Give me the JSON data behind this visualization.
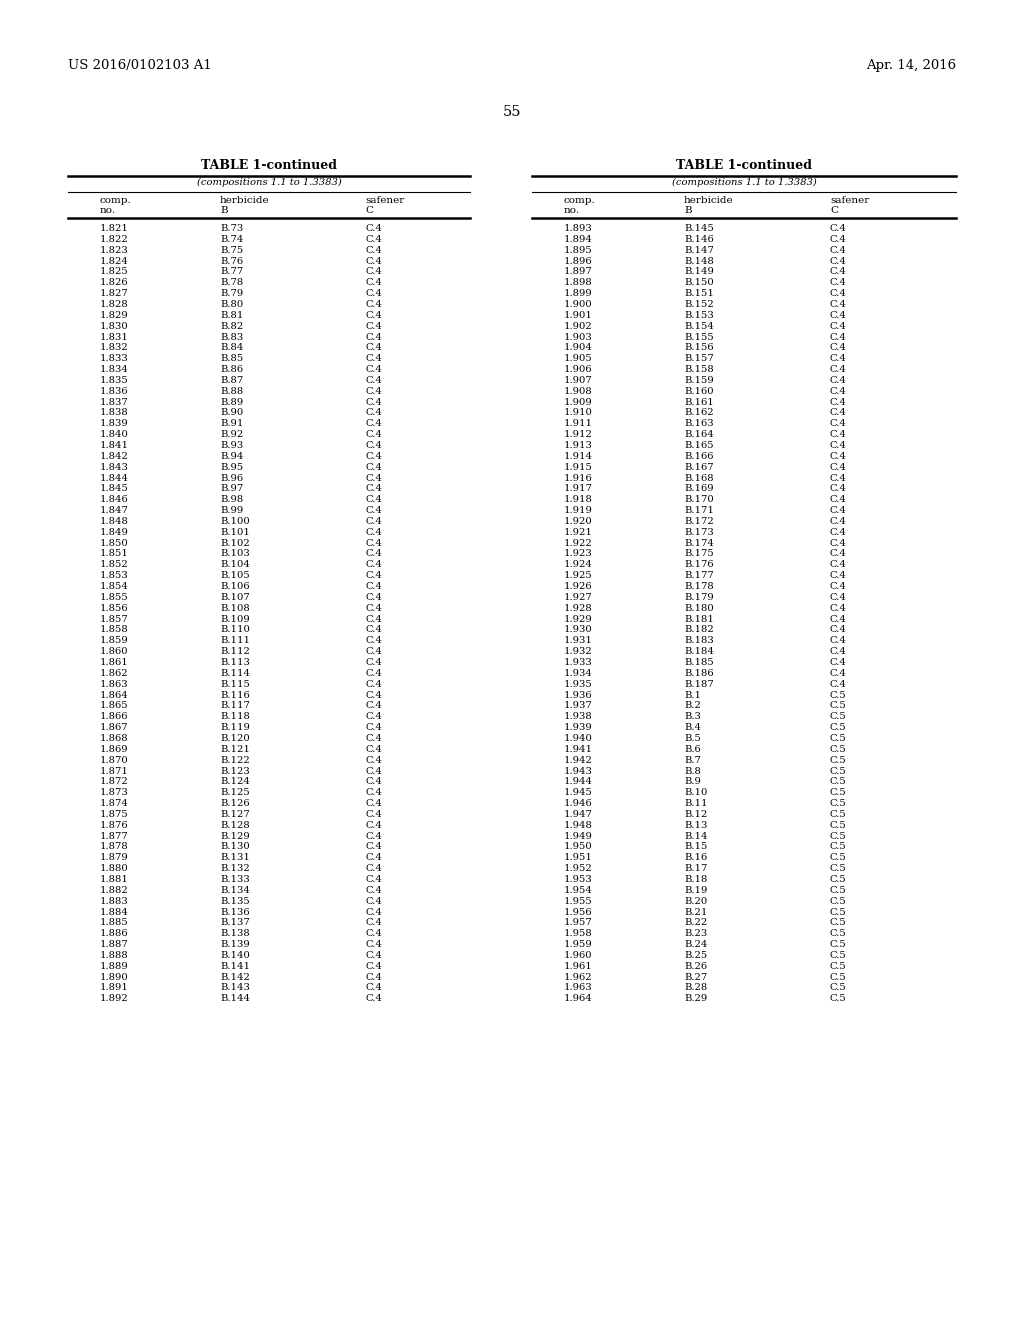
{
  "header_left": "US 2016/0102103 A1",
  "header_right": "Apr. 14, 2016",
  "page_number": "55",
  "table_title": "TABLE 1-continued",
  "table_subtitle": "(compositions 1.1 to 1.3383)",
  "col_labels_line1": [
    "comp.",
    "herbicide",
    "safener"
  ],
  "col_labels_line2": [
    "no.",
    "B",
    "C"
  ],
  "left_table": {
    "comp_no": [
      "1.821",
      "1.822",
      "1.823",
      "1.824",
      "1.825",
      "1.826",
      "1.827",
      "1.828",
      "1.829",
      "1.830",
      "1.831",
      "1.832",
      "1.833",
      "1.834",
      "1.835",
      "1.836",
      "1.837",
      "1.838",
      "1.839",
      "1.840",
      "1.841",
      "1.842",
      "1.843",
      "1.844",
      "1.845",
      "1.846",
      "1.847",
      "1.848",
      "1.849",
      "1.850",
      "1.851",
      "1.852",
      "1.853",
      "1.854",
      "1.855",
      "1.856",
      "1.857",
      "1.858",
      "1.859",
      "1.860",
      "1.861",
      "1.862",
      "1.863",
      "1.864",
      "1.865",
      "1.866",
      "1.867",
      "1.868",
      "1.869",
      "1.870",
      "1.871",
      "1.872",
      "1.873",
      "1.874",
      "1.875",
      "1.876",
      "1.877",
      "1.878",
      "1.879",
      "1.880",
      "1.881",
      "1.882",
      "1.883",
      "1.884",
      "1.885",
      "1.886",
      "1.887",
      "1.888",
      "1.889",
      "1.890",
      "1.891",
      "1.892"
    ],
    "herbicide": [
      "B.73",
      "B.74",
      "B.75",
      "B.76",
      "B.77",
      "B.78",
      "B.79",
      "B.80",
      "B.81",
      "B.82",
      "B.83",
      "B.84",
      "B.85",
      "B.86",
      "B.87",
      "B.88",
      "B.89",
      "B.90",
      "B.91",
      "B.92",
      "B.93",
      "B.94",
      "B.95",
      "B.96",
      "B.97",
      "B.98",
      "B.99",
      "B.100",
      "B.101",
      "B.102",
      "B.103",
      "B.104",
      "B.105",
      "B.106",
      "B.107",
      "B.108",
      "B.109",
      "B.110",
      "B.111",
      "B.112",
      "B.113",
      "B.114",
      "B.115",
      "B.116",
      "B.117",
      "B.118",
      "B.119",
      "B.120",
      "B.121",
      "B.122",
      "B.123",
      "B.124",
      "B.125",
      "B.126",
      "B.127",
      "B.128",
      "B.129",
      "B.130",
      "B.131",
      "B.132",
      "B.133",
      "B.134",
      "B.135",
      "B.136",
      "B.137",
      "B.138",
      "B.139",
      "B.140",
      "B.141",
      "B.142",
      "B.143",
      "B.144"
    ],
    "safener": [
      "C.4",
      "C.4",
      "C.4",
      "C.4",
      "C.4",
      "C.4",
      "C.4",
      "C.4",
      "C.4",
      "C.4",
      "C.4",
      "C.4",
      "C.4",
      "C.4",
      "C.4",
      "C.4",
      "C.4",
      "C.4",
      "C.4",
      "C.4",
      "C.4",
      "C.4",
      "C.4",
      "C.4",
      "C.4",
      "C.4",
      "C.4",
      "C.4",
      "C.4",
      "C.4",
      "C.4",
      "C.4",
      "C.4",
      "C.4",
      "C.4",
      "C.4",
      "C.4",
      "C.4",
      "C.4",
      "C.4",
      "C.4",
      "C.4",
      "C.4",
      "C.4",
      "C.4",
      "C.4",
      "C.4",
      "C.4",
      "C.4",
      "C.4",
      "C.4",
      "C.4",
      "C.4",
      "C.4",
      "C.4",
      "C.4",
      "C.4",
      "C.4",
      "C.4",
      "C.4",
      "C.4",
      "C.4",
      "C.4",
      "C.4",
      "C.4",
      "C.4",
      "C.4",
      "C.4",
      "C.4",
      "C.4",
      "C.4",
      "C.4"
    ]
  },
  "right_table": {
    "comp_no": [
      "1.893",
      "1.894",
      "1.895",
      "1.896",
      "1.897",
      "1.898",
      "1.899",
      "1.900",
      "1.901",
      "1.902",
      "1.903",
      "1.904",
      "1.905",
      "1.906",
      "1.907",
      "1.908",
      "1.909",
      "1.910",
      "1.911",
      "1.912",
      "1.913",
      "1.914",
      "1.915",
      "1.916",
      "1.917",
      "1.918",
      "1.919",
      "1.920",
      "1.921",
      "1.922",
      "1.923",
      "1.924",
      "1.925",
      "1.926",
      "1.927",
      "1.928",
      "1.929",
      "1.930",
      "1.931",
      "1.932",
      "1.933",
      "1.934",
      "1.935",
      "1.936",
      "1.937",
      "1.938",
      "1.939",
      "1.940",
      "1.941",
      "1.942",
      "1.943",
      "1.944",
      "1.945",
      "1.946",
      "1.947",
      "1.948",
      "1.949",
      "1.950",
      "1.951",
      "1.952",
      "1.953",
      "1.954",
      "1.955",
      "1.956",
      "1.957",
      "1.958",
      "1.959",
      "1.960",
      "1.961",
      "1.962",
      "1.963",
      "1.964"
    ],
    "herbicide": [
      "B.145",
      "B.146",
      "B.147",
      "B.148",
      "B.149",
      "B.150",
      "B.151",
      "B.152",
      "B.153",
      "B.154",
      "B.155",
      "B.156",
      "B.157",
      "B.158",
      "B.159",
      "B.160",
      "B.161",
      "B.162",
      "B.163",
      "B.164",
      "B.165",
      "B.166",
      "B.167",
      "B.168",
      "B.169",
      "B.170",
      "B.171",
      "B.172",
      "B.173",
      "B.174",
      "B.175",
      "B.176",
      "B.177",
      "B.178",
      "B.179",
      "B.180",
      "B.181",
      "B.182",
      "B.183",
      "B.184",
      "B.185",
      "B.186",
      "B.187",
      "B.1",
      "B.2",
      "B.3",
      "B.4",
      "B.5",
      "B.6",
      "B.7",
      "B.8",
      "B.9",
      "B.10",
      "B.11",
      "B.12",
      "B.13",
      "B.14",
      "B.15",
      "B.16",
      "B.17",
      "B.18",
      "B.19",
      "B.20",
      "B.21",
      "B.22",
      "B.23",
      "B.24",
      "B.25",
      "B.26",
      "B.27",
      "B.28",
      "B.29"
    ],
    "safener": [
      "C.4",
      "C.4",
      "C.4",
      "C.4",
      "C.4",
      "C.4",
      "C.4",
      "C.4",
      "C.4",
      "C.4",
      "C.4",
      "C.4",
      "C.4",
      "C.4",
      "C.4",
      "C.4",
      "C.4",
      "C.4",
      "C.4",
      "C.4",
      "C.4",
      "C.4",
      "C.4",
      "C.4",
      "C.4",
      "C.4",
      "C.4",
      "C.4",
      "C.4",
      "C.4",
      "C.4",
      "C.4",
      "C.4",
      "C.4",
      "C.4",
      "C.4",
      "C.4",
      "C.4",
      "C.4",
      "C.4",
      "C.4",
      "C.4",
      "C.4",
      "C.5",
      "C.5",
      "C.5",
      "C.5",
      "C.5",
      "C.5",
      "C.5",
      "C.5",
      "C.5",
      "C.5",
      "C.5",
      "C.5",
      "C.5",
      "C.5",
      "C.5",
      "C.5",
      "C.5",
      "C.5",
      "C.5",
      "C.5",
      "C.5",
      "C.5",
      "C.5",
      "C.5",
      "C.5",
      "C.5",
      "C.5",
      "C.5",
      "C.5"
    ]
  },
  "bg_color": "#ffffff",
  "text_color": "#000000",
  "data_font_size": 7.2,
  "header_font_size": 9.5,
  "title_font_size": 9.0,
  "subtitle_font_size": 7.2,
  "col_header_font_size": 7.5,
  "page_num_font_size": 10.5
}
